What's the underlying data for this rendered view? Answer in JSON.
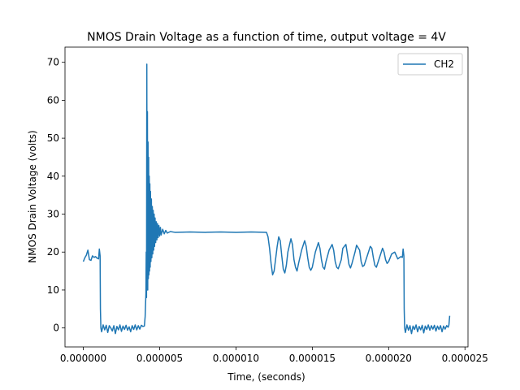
{
  "chart_data": {
    "type": "line",
    "title": "NMOS Drain Voltage as a function of time, output  voltage = 4V",
    "xlabel": "Time, (seconds)",
    "ylabel": "NMOS Drain Voltage (volts)",
    "xlim": [
      -1.2e-06,
      2.52e-05
    ],
    "ylim": [
      -5,
      74
    ],
    "grid": false,
    "legend_position": "top-right",
    "x_ticks": [
      {
        "value": 0,
        "label": "0.000000"
      },
      {
        "value": 5e-06,
        "label": "0.000005"
      },
      {
        "value": 1e-05,
        "label": "0.000010"
      },
      {
        "value": 1.5e-05,
        "label": "0.000015"
      },
      {
        "value": 2e-05,
        "label": "0.000020"
      },
      {
        "value": 2.5e-05,
        "label": "0.000025"
      }
    ],
    "y_ticks": [
      {
        "value": 0,
        "label": "0"
      },
      {
        "value": 10,
        "label": "10"
      },
      {
        "value": 20,
        "label": "20"
      },
      {
        "value": 30,
        "label": "30"
      },
      {
        "value": 40,
        "label": "40"
      },
      {
        "value": 50,
        "label": "50"
      },
      {
        "value": 60,
        "label": "60"
      },
      {
        "value": 70,
        "label": "70"
      }
    ],
    "series": [
      {
        "name": "CH2",
        "color": "#1f77b4",
        "points": [
          [
            0.0,
            17.5
          ],
          [
            1e-07,
            18.5
          ],
          [
            2e-07,
            19.2
          ],
          [
            3e-07,
            20.5
          ],
          [
            4e-07,
            18.0
          ],
          [
            5e-07,
            17.8
          ],
          [
            6e-07,
            19.0
          ],
          [
            7e-07,
            18.6
          ],
          [
            8e-07,
            18.8
          ],
          [
            9e-07,
            18.4
          ],
          [
            1e-06,
            18.2
          ],
          [
            1.05e-06,
            20.8
          ],
          [
            1.1e-06,
            19.0
          ],
          [
            1.12e-06,
            5.0
          ],
          [
            1.15e-06,
            0.0
          ],
          [
            1.2e-06,
            -1.0
          ],
          [
            1.3e-06,
            0.8
          ],
          [
            1.4e-06,
            -0.5
          ],
          [
            1.5e-06,
            0.7
          ],
          [
            1.6e-06,
            -1.2
          ],
          [
            1.7e-06,
            0.6
          ],
          [
            1.8e-06,
            0.0
          ],
          [
            1.9e-06,
            -0.8
          ],
          [
            2e-06,
            0.6
          ],
          [
            2.1e-06,
            -1.5
          ],
          [
            2.2e-06,
            0.4
          ],
          [
            2.3e-06,
            -0.5
          ],
          [
            2.4e-06,
            0.8
          ],
          [
            2.5e-06,
            -0.9
          ],
          [
            2.6e-06,
            0.5
          ],
          [
            2.7e-06,
            -0.4
          ],
          [
            2.8e-06,
            0.7
          ],
          [
            2.9e-06,
            -0.6
          ],
          [
            3e-06,
            0.3
          ],
          [
            3.1e-06,
            -1.0
          ],
          [
            3.2e-06,
            0.6
          ],
          [
            3.3e-06,
            -0.4
          ],
          [
            3.4e-06,
            0.8
          ],
          [
            3.5e-06,
            -0.5
          ],
          [
            3.6e-06,
            0.6
          ],
          [
            3.7e-06,
            -0.3
          ],
          [
            3.8e-06,
            0.7
          ],
          [
            3.9e-06,
            0.4
          ],
          [
            4e-06,
            0.5
          ],
          [
            4.05e-06,
            3.0
          ],
          [
            4.1e-06,
            9.0
          ],
          [
            4.12e-06,
            20.0
          ],
          [
            4.14e-06,
            8.0
          ],
          [
            4.16e-06,
            69.5
          ],
          [
            4.18e-06,
            12.0
          ],
          [
            4.2e-06,
            57.0
          ],
          [
            4.22e-06,
            10.0
          ],
          [
            4.24e-06,
            49.0
          ],
          [
            4.26e-06,
            13.0
          ],
          [
            4.28e-06,
            45.0
          ],
          [
            4.3e-06,
            14.0
          ],
          [
            4.32e-06,
            40.0
          ],
          [
            4.34e-06,
            15.0
          ],
          [
            4.36e-06,
            38.0
          ],
          [
            4.38e-06,
            16.0
          ],
          [
            4.4e-06,
            36.0
          ],
          [
            4.43e-06,
            17.5
          ],
          [
            4.46e-06,
            34.0
          ],
          [
            4.49e-06,
            18.5
          ],
          [
            4.52e-06,
            32.0
          ],
          [
            4.55e-06,
            19.5
          ],
          [
            4.58e-06,
            31.0
          ],
          [
            4.61e-06,
            20.5
          ],
          [
            4.64e-06,
            30.0
          ],
          [
            4.67e-06,
            21.5
          ],
          [
            4.7e-06,
            29.0
          ],
          [
            4.74e-06,
            22.5
          ],
          [
            4.78e-06,
            28.0
          ],
          [
            4.82e-06,
            23.2
          ],
          [
            4.86e-06,
            27.5
          ],
          [
            4.9e-06,
            23.8
          ],
          [
            4.95e-06,
            27.0
          ],
          [
            5e-06,
            24.2
          ],
          [
            5.05e-06,
            26.5
          ],
          [
            5.1e-06,
            24.5
          ],
          [
            5.2e-06,
            26.0
          ],
          [
            5.3e-06,
            24.8
          ],
          [
            5.4e-06,
            25.7
          ],
          [
            5.5e-06,
            25.0
          ],
          [
            5.7e-06,
            25.4
          ],
          [
            6e-06,
            25.2
          ],
          [
            7e-06,
            25.3
          ],
          [
            8e-06,
            25.2
          ],
          [
            9e-06,
            25.3
          ],
          [
            1e-05,
            25.2
          ],
          [
            1.1e-05,
            25.3
          ],
          [
            1.2e-05,
            25.2
          ],
          [
            1.21e-05,
            24.0
          ],
          [
            1.22e-05,
            21.0
          ],
          [
            1.23e-05,
            17.0
          ],
          [
            1.24e-05,
            14.0
          ],
          [
            1.25e-05,
            15.0
          ],
          [
            1.27e-05,
            21.5
          ],
          [
            1.28e-05,
            24.0
          ],
          [
            1.29e-05,
            23.0
          ],
          [
            1.3e-05,
            19.0
          ],
          [
            1.31e-05,
            15.5
          ],
          [
            1.32e-05,
            14.5
          ],
          [
            1.33e-05,
            16.5
          ],
          [
            1.34e-05,
            20.0
          ],
          [
            1.36e-05,
            23.5
          ],
          [
            1.37e-05,
            22.0
          ],
          [
            1.38e-05,
            18.0
          ],
          [
            1.39e-05,
            16.0
          ],
          [
            1.4e-05,
            15.0
          ],
          [
            1.41e-05,
            17.0
          ],
          [
            1.43e-05,
            20.5
          ],
          [
            1.45e-05,
            23.0
          ],
          [
            1.46e-05,
            21.5
          ],
          [
            1.47e-05,
            18.5
          ],
          [
            1.48e-05,
            16.0
          ],
          [
            1.49e-05,
            15.2
          ],
          [
            1.5e-05,
            16.0
          ],
          [
            1.52e-05,
            20.0
          ],
          [
            1.54e-05,
            22.5
          ],
          [
            1.55e-05,
            21.0
          ],
          [
            1.56e-05,
            18.0
          ],
          [
            1.57e-05,
            16.0
          ],
          [
            1.58e-05,
            15.5
          ],
          [
            1.59e-05,
            17.5
          ],
          [
            1.61e-05,
            20.5
          ],
          [
            1.63e-05,
            22.0
          ],
          [
            1.64e-05,
            20.5
          ],
          [
            1.65e-05,
            17.5
          ],
          [
            1.66e-05,
            16.0
          ],
          [
            1.67e-05,
            15.6
          ],
          [
            1.69e-05,
            18.0
          ],
          [
            1.7e-05,
            21.0
          ],
          [
            1.72e-05,
            22.0
          ],
          [
            1.73e-05,
            19.5
          ],
          [
            1.74e-05,
            16.8
          ],
          [
            1.75e-05,
            15.8
          ],
          [
            1.76e-05,
            17.0
          ],
          [
            1.78e-05,
            20.0
          ],
          [
            1.79e-05,
            21.8
          ],
          [
            1.81e-05,
            20.5
          ],
          [
            1.82e-05,
            17.5
          ],
          [
            1.83e-05,
            16.2
          ],
          [
            1.84e-05,
            16.5
          ],
          [
            1.86e-05,
            19.0
          ],
          [
            1.88e-05,
            21.5
          ],
          [
            1.89e-05,
            21.0
          ],
          [
            1.9e-05,
            18.5
          ],
          [
            1.91e-05,
            16.5
          ],
          [
            1.92e-05,
            16.0
          ],
          [
            1.94e-05,
            18.5
          ],
          [
            1.96e-05,
            21.0
          ],
          [
            1.97e-05,
            20.0
          ],
          [
            1.98e-05,
            18.0
          ],
          [
            1.99e-05,
            17.0
          ],
          [
            2e-05,
            17.5
          ],
          [
            2.02e-05,
            19.5
          ],
          [
            2.04e-05,
            20.0
          ],
          [
            2.06e-05,
            18.2
          ],
          [
            2.08e-05,
            18.8
          ],
          [
            2.09e-05,
            18.6
          ],
          [
            2.095e-05,
            20.8
          ],
          [
            2.1e-05,
            19.0
          ],
          [
            2.102e-05,
            5.0
          ],
          [
            2.105e-05,
            0.0
          ],
          [
            2.11e-05,
            -1.2
          ],
          [
            2.12e-05,
            0.8
          ],
          [
            2.13e-05,
            -0.6
          ],
          [
            2.14e-05,
            0.6
          ],
          [
            2.15e-05,
            -1.5
          ],
          [
            2.16e-05,
            0.5
          ],
          [
            2.17e-05,
            -0.4
          ],
          [
            2.18e-05,
            0.8
          ],
          [
            2.19e-05,
            -1.0
          ],
          [
            2.2e-05,
            0.4
          ],
          [
            2.21e-05,
            -0.5
          ],
          [
            2.22e-05,
            0.7
          ],
          [
            2.23e-05,
            -1.3
          ],
          [
            2.24e-05,
            0.5
          ],
          [
            2.25e-05,
            -0.4
          ],
          [
            2.26e-05,
            0.8
          ],
          [
            2.27e-05,
            -0.6
          ],
          [
            2.28e-05,
            0.6
          ],
          [
            2.29e-05,
            -0.3
          ],
          [
            2.3e-05,
            0.7
          ],
          [
            2.31e-05,
            -0.8
          ],
          [
            2.32e-05,
            0.5
          ],
          [
            2.33e-05,
            -0.4
          ],
          [
            2.34e-05,
            0.6
          ],
          [
            2.35e-05,
            -1.0
          ],
          [
            2.36e-05,
            0.5
          ],
          [
            2.37e-05,
            -0.3
          ],
          [
            2.38e-05,
            0.6
          ],
          [
            2.39e-05,
            0.2
          ],
          [
            2.395e-05,
            0.8
          ],
          [
            2.4e-05,
            3.2
          ]
        ]
      }
    ]
  }
}
